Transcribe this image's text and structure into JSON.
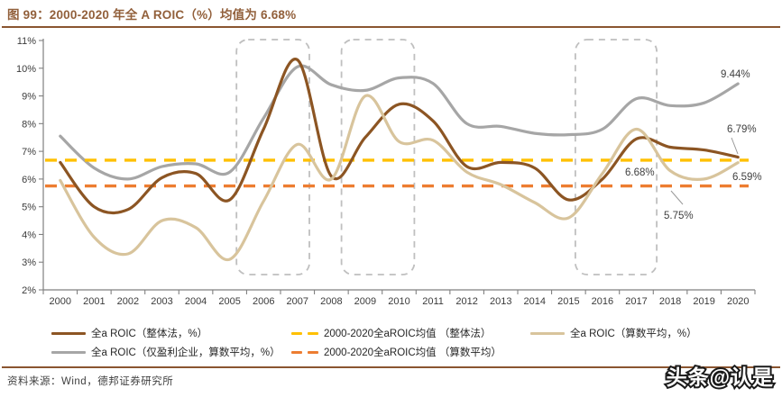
{
  "header": {
    "title": "图 99：2000-2020 年全 A ROIC（%）均值为 6.68%"
  },
  "footer": {
    "source": "资料来源：Wind，德邦证券研究所",
    "watermark": "头条@认是"
  },
  "colors": {
    "accent_brown": "#92603B",
    "rule_brown": "#8A5530",
    "series_overall": "#8C5523",
    "series_profit_only": "#A6A6A6",
    "series_arith": "#D8C49C",
    "mean_overall": "#FFC000",
    "mean_arith": "#ED7D31",
    "highlight_box": "#BFBFBF",
    "axis": "#808080",
    "tick_text": "#3B3B3B",
    "annotation_text": "#404040"
  },
  "chart_data": {
    "type": "line",
    "title": "2000-2020 年全 A ROIC（%）均值为 6.68%",
    "x": [
      "2000",
      "2001",
      "2002",
      "2003",
      "2004",
      "2005",
      "2006",
      "2007",
      "2008",
      "2009",
      "2010",
      "2011",
      "2012",
      "2013",
      "2014",
      "2015",
      "2016",
      "2017",
      "2018",
      "2019",
      "2020"
    ],
    "ylim": [
      2,
      11
    ],
    "y_tick_labels": [
      "11%",
      "10%",
      "9%",
      "8%",
      "7%",
      "6%",
      "5%",
      "4%",
      "3%",
      "2%"
    ],
    "grid": "off",
    "legend_position": "bottom",
    "series": [
      {
        "name": "全a ROIC（整体法，%）",
        "color": "#8C5523",
        "style": "solid",
        "values": [
          6.6,
          5.0,
          4.9,
          6.05,
          6.2,
          5.25,
          7.8,
          10.3,
          6.1,
          7.5,
          8.7,
          8.1,
          6.45,
          6.6,
          6.4,
          5.25,
          6.0,
          7.45,
          7.15,
          7.05,
          6.79
        ]
      },
      {
        "name": "全a ROIC（仅盈利企业，算数平均，%）",
        "color": "#A6A6A6",
        "style": "solid",
        "values": [
          7.55,
          6.4,
          6.0,
          6.45,
          6.55,
          6.25,
          8.2,
          10.05,
          9.4,
          9.2,
          9.65,
          9.45,
          8.0,
          7.9,
          7.65,
          7.6,
          7.8,
          8.9,
          8.65,
          8.75,
          9.44
        ]
      },
      {
        "name": "全a ROIC（算数平均，%）",
        "color": "#D8C49C",
        "style": "solid",
        "values": [
          5.95,
          3.9,
          3.3,
          4.5,
          4.25,
          3.1,
          5.2,
          7.25,
          6.0,
          9.0,
          7.35,
          7.4,
          6.25,
          5.8,
          5.15,
          4.6,
          6.2,
          7.8,
          6.3,
          6.0,
          6.59
        ]
      },
      {
        "name": "2000-2020全aROIC均值 （整体法）",
        "color": "#FFC000",
        "style": "dashed",
        "mean_value": 6.68
      },
      {
        "name": "2000-2020全aROIC均值 （算数平均）",
        "color": "#ED7D31",
        "style": "dashed",
        "mean_value": 5.75
      }
    ],
    "legend_order": [
      0,
      3,
      2,
      1,
      4
    ],
    "highlight_boxes": [
      {
        "x_from": 2005.2,
        "x_to": 2007.35
      },
      {
        "x_from": 2008.3,
        "x_to": 2010.45
      },
      {
        "x_from": 2015.2,
        "x_to": 2017.6
      }
    ],
    "annotations": [
      {
        "text": "9.44%",
        "anchor_key": "profit-only-end"
      },
      {
        "text": "6.79%",
        "anchor_key": "overall-end"
      },
      {
        "text": "6.68%",
        "anchor_key": "mean-overall"
      },
      {
        "text": "6.59%",
        "anchor_key": "arith-end"
      },
      {
        "text": "5.75%",
        "anchor_key": "mean-arith"
      }
    ]
  }
}
